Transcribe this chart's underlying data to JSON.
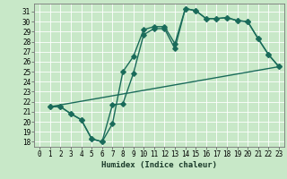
{
  "xlabel": "Humidex (Indice chaleur)",
  "bg_color": "#c8e8c8",
  "grid_color": "#ffffff",
  "line_color": "#1a6b5a",
  "xlim": [
    -0.5,
    23.5
  ],
  "ylim": [
    17.5,
    31.8
  ],
  "yticks": [
    18,
    19,
    20,
    21,
    22,
    23,
    24,
    25,
    26,
    27,
    28,
    29,
    30,
    31
  ],
  "xticks": [
    0,
    1,
    2,
    3,
    4,
    5,
    6,
    7,
    8,
    9,
    10,
    11,
    12,
    13,
    14,
    15,
    16,
    17,
    18,
    19,
    20,
    21,
    22,
    23
  ],
  "curve1_x": [
    1,
    2,
    3,
    4,
    5,
    6,
    7,
    8,
    9,
    10,
    11,
    12,
    13,
    14,
    15,
    16,
    17,
    18,
    19,
    20,
    21,
    22,
    23
  ],
  "curve1_y": [
    21.5,
    21.5,
    20.8,
    20.2,
    18.3,
    18.0,
    19.8,
    25.0,
    26.5,
    29.2,
    29.5,
    29.5,
    27.8,
    31.3,
    31.1,
    30.3,
    30.3,
    30.4,
    30.1,
    30.0,
    28.3,
    26.7,
    25.5
  ],
  "curve2_x": [
    1,
    2,
    3,
    4,
    5,
    6,
    7,
    8,
    9,
    10,
    11,
    12,
    13,
    14,
    15,
    16,
    17,
    18,
    19,
    20,
    21,
    22,
    23
  ],
  "curve2_y": [
    21.5,
    21.5,
    20.8,
    20.2,
    18.3,
    18.0,
    21.7,
    21.8,
    24.8,
    28.7,
    29.3,
    29.3,
    27.3,
    31.3,
    31.1,
    30.3,
    30.3,
    30.4,
    30.1,
    30.0,
    28.3,
    26.7,
    25.5
  ],
  "line3_x": [
    1,
    23
  ],
  "line3_y": [
    21.5,
    25.5
  ],
  "marker_size": 2.8,
  "linewidth": 1.0,
  "xlabel_fontsize": 6.5,
  "tick_fontsize": 5.5
}
